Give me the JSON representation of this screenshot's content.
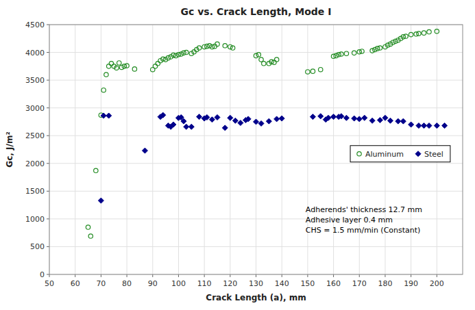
{
  "chart_data": {
    "type": "scatter",
    "title": "Gc vs. Crack Length, Mode I",
    "x_label": "Crack Length (a), mm",
    "y_label": "Gc, J/m²",
    "xlim": [
      50,
      210
    ],
    "ylim": [
      0,
      4500
    ],
    "xticks": [
      50,
      60,
      70,
      80,
      90,
      100,
      110,
      120,
      130,
      140,
      150,
      160,
      170,
      180,
      190,
      200
    ],
    "yticks": [
      0,
      500,
      1000,
      1500,
      2000,
      2500,
      3000,
      3500,
      4000,
      4500
    ],
    "grid": true,
    "legend": "right",
    "series": [
      {
        "name": "Aluminum",
        "color": "#228B22",
        "marker": "circle",
        "x": [
          65,
          66,
          68,
          70,
          71,
          72,
          73,
          74,
          75,
          76,
          77,
          78,
          79,
          80,
          83,
          90,
          91,
          92,
          93,
          94,
          95,
          96,
          97,
          98,
          99,
          100,
          101,
          102,
          103,
          105,
          106,
          107,
          108,
          110,
          111,
          112,
          113,
          114,
          115,
          118,
          120,
          121,
          130,
          131,
          132,
          133,
          135,
          136,
          137,
          138,
          150,
          152,
          155,
          160,
          161,
          162,
          163,
          165,
          168,
          170,
          171,
          175,
          176,
          177,
          178,
          180,
          181,
          182,
          183,
          184,
          185,
          186,
          187,
          188,
          190,
          192,
          193,
          195,
          197,
          200
        ],
        "values": [
          850,
          690,
          1870,
          2870,
          3320,
          3600,
          3750,
          3800,
          3750,
          3720,
          3810,
          3730,
          3750,
          3760,
          3700,
          3690,
          3750,
          3800,
          3850,
          3880,
          3870,
          3900,
          3920,
          3950,
          3940,
          3960,
          3970,
          3990,
          4000,
          3980,
          4010,
          4050,
          4080,
          4100,
          4110,
          4120,
          4100,
          4110,
          4150,
          4120,
          4100,
          4080,
          3940,
          3960,
          3870,
          3800,
          3800,
          3830,
          3820,
          3870,
          3650,
          3660,
          3690,
          3930,
          3940,
          3960,
          3970,
          3980,
          3990,
          4010,
          4020,
          4030,
          4050,
          4070,
          4080,
          4100,
          4130,
          4150,
          4180,
          4200,
          4220,
          4250,
          4280,
          4290,
          4320,
          4330,
          4340,
          4350,
          4370,
          4380
        ]
      },
      {
        "name": "Steel",
        "color": "#00008B",
        "marker": "diamond",
        "x": [
          70,
          71,
          73,
          87,
          93,
          94,
          96,
          97,
          98,
          100,
          101,
          102,
          103,
          105,
          108,
          110,
          111,
          113,
          115,
          118,
          120,
          122,
          124,
          126,
          127,
          130,
          132,
          135,
          138,
          140,
          152,
          155,
          157,
          158,
          160,
          162,
          163,
          165,
          168,
          170,
          172,
          175,
          178,
          180,
          182,
          185,
          187,
          190,
          193,
          195,
          197,
          200,
          203
        ],
        "values": [
          1330,
          2860,
          2860,
          2230,
          2840,
          2870,
          2680,
          2660,
          2700,
          2820,
          2830,
          2760,
          2660,
          2660,
          2840,
          2810,
          2830,
          2790,
          2830,
          2640,
          2820,
          2770,
          2730,
          2780,
          2800,
          2750,
          2720,
          2760,
          2800,
          2810,
          2840,
          2850,
          2790,
          2820,
          2840,
          2840,
          2850,
          2820,
          2810,
          2800,
          2820,
          2770,
          2780,
          2820,
          2770,
          2760,
          2760,
          2700,
          2680,
          2680,
          2680,
          2680,
          2680
        ]
      }
    ],
    "annotations": [
      "Adherends' thickness 12.7 mm",
      "Adhesive layer 0.4 mm",
      "CHS = 1.5 mm/min (Constant)"
    ]
  }
}
